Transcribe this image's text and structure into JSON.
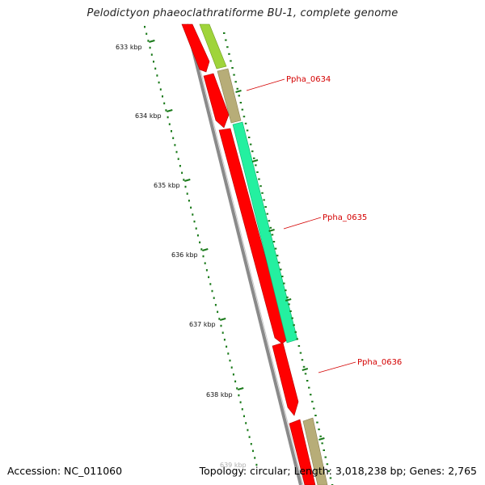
{
  "map": {
    "title": "Pelodictyon phaeoclathratiforme BU-1, complete genome",
    "accession": "Accession: NC_011060",
    "summary": "Topology: circular; Length: 3,018,238 bp; Genes: 2,765"
  },
  "scale": {
    "unit_labels": [
      "633 kbp",
      "634 kbp",
      "635 kbp",
      "636 kbp",
      "637 kbp",
      "638 kbp",
      "639 kbp"
    ]
  },
  "gene_labels": [
    "Ppha_0634",
    "Ppha_0635",
    "Ppha_0636"
  ],
  "colors": {
    "backbone": "#808080",
    "cds": "#ff0000",
    "gene_olive": "#b7ad78",
    "gene_lime": "#9fd43a",
    "gene_teal": "#24f0a0",
    "ticks": "#1a7a1a",
    "labels": "#d40000"
  }
}
